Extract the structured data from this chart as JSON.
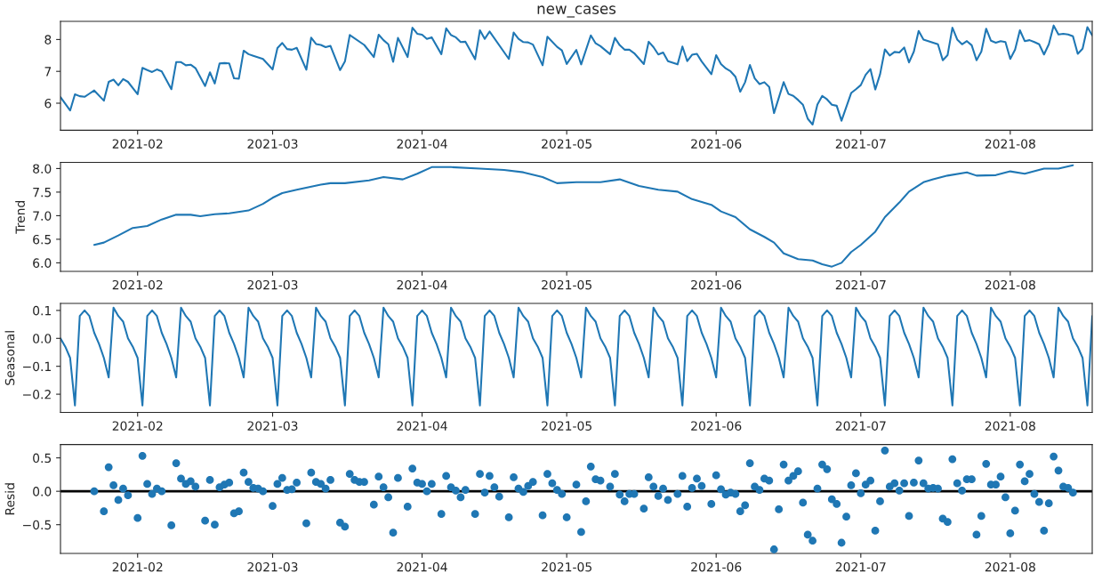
{
  "chart_data": [
    {
      "type": "line",
      "title": "new_cases",
      "xlim": [
        "2021-01-16",
        "2021-08-18"
      ],
      "xticks": [
        {
          "value": "2021-02-01",
          "label": "2021-02"
        },
        {
          "value": "2021-03-01",
          "label": "2021-03"
        },
        {
          "value": "2021-04-01",
          "label": "2021-04"
        },
        {
          "value": "2021-05-01",
          "label": "2021-05"
        },
        {
          "value": "2021-06-01",
          "label": "2021-06"
        },
        {
          "value": "2021-07-01",
          "label": "2021-07"
        },
        {
          "value": "2021-08-01",
          "label": "2021-08"
        }
      ],
      "ylim": [
        5.15,
        8.57
      ],
      "yticks": [
        6,
        7,
        8
      ],
      "series": [
        {
          "color": "#1f77b4",
          "x": [
            "2021-01-16",
            "2021-01-18",
            "2021-01-19",
            "2021-01-20",
            "2021-01-21",
            "2021-01-22",
            "2021-01-23",
            "2021-01-25",
            "2021-01-26",
            "2021-01-27",
            "2021-01-28",
            "2021-01-29",
            "2021-01-30",
            "2021-02-01",
            "2021-02-02",
            "2021-02-03",
            "2021-02-04",
            "2021-02-05",
            "2021-02-06",
            "2021-02-08",
            "2021-02-09",
            "2021-02-10",
            "2021-02-11",
            "2021-02-12",
            "2021-02-13",
            "2021-02-15",
            "2021-02-16",
            "2021-02-17",
            "2021-02-18",
            "2021-02-19",
            "2021-02-20",
            "2021-02-21",
            "2021-02-22",
            "2021-02-23",
            "2021-02-24",
            "2021-02-25",
            "2021-02-27",
            "2021-03-01",
            "2021-03-02",
            "2021-03-03",
            "2021-03-04",
            "2021-03-05",
            "2021-03-06",
            "2021-03-08",
            "2021-03-09",
            "2021-03-10",
            "2021-03-11",
            "2021-03-12",
            "2021-03-13",
            "2021-03-15",
            "2021-03-16",
            "2021-03-17",
            "2021-03-20",
            "2021-03-22",
            "2021-03-23",
            "2021-03-24",
            "2021-03-25",
            "2021-03-26",
            "2021-03-27",
            "2021-03-29",
            "2021-03-30",
            "2021-03-31",
            "2021-04-01",
            "2021-04-02",
            "2021-04-03",
            "2021-04-05",
            "2021-04-06",
            "2021-04-07",
            "2021-04-08",
            "2021-04-09",
            "2021-04-10",
            "2021-04-12",
            "2021-04-13",
            "2021-04-14",
            "2021-04-15",
            "2021-04-19",
            "2021-04-20",
            "2021-04-21",
            "2021-04-22",
            "2021-04-23",
            "2021-04-24",
            "2021-04-26",
            "2021-04-27",
            "2021-04-29",
            "2021-04-30",
            "2021-05-01",
            "2021-05-03",
            "2021-05-04",
            "2021-05-06",
            "2021-05-07",
            "2021-05-08",
            "2021-05-10",
            "2021-05-11",
            "2021-05-12",
            "2021-05-13",
            "2021-05-14",
            "2021-05-15",
            "2021-05-17",
            "2021-05-18",
            "2021-05-19",
            "2021-05-20",
            "2021-05-21",
            "2021-05-22",
            "2021-05-24",
            "2021-05-25",
            "2021-05-26",
            "2021-05-27",
            "2021-05-28",
            "2021-05-29",
            "2021-05-31",
            "2021-06-01",
            "2021-06-02",
            "2021-06-03",
            "2021-06-04",
            "2021-06-05",
            "2021-06-06",
            "2021-06-07",
            "2021-06-08",
            "2021-06-09",
            "2021-06-10",
            "2021-06-11",
            "2021-06-12",
            "2021-06-13",
            "2021-06-15",
            "2021-06-16",
            "2021-06-17",
            "2021-06-18",
            "2021-06-19",
            "2021-06-20",
            "2021-06-21",
            "2021-06-22",
            "2021-06-23",
            "2021-06-24",
            "2021-06-25",
            "2021-06-26",
            "2021-06-27",
            "2021-06-29",
            "2021-06-30",
            "2021-07-01",
            "2021-07-02",
            "2021-07-03",
            "2021-07-04",
            "2021-07-05",
            "2021-07-06",
            "2021-07-07",
            "2021-07-08",
            "2021-07-09",
            "2021-07-10",
            "2021-07-11",
            "2021-07-12",
            "2021-07-13",
            "2021-07-14",
            "2021-07-17",
            "2021-07-18",
            "2021-07-19",
            "2021-07-20",
            "2021-07-21",
            "2021-07-22",
            "2021-07-23",
            "2021-07-24",
            "2021-07-25",
            "2021-07-26",
            "2021-07-27",
            "2021-07-28",
            "2021-07-29",
            "2021-07-30",
            "2021-07-31",
            "2021-08-01",
            "2021-08-02",
            "2021-08-03",
            "2021-08-04",
            "2021-08-05",
            "2021-08-06",
            "2021-08-07",
            "2021-08-08",
            "2021-08-09",
            "2021-08-10",
            "2021-08-11",
            "2021-08-12",
            "2021-08-13",
            "2021-08-14",
            "2021-08-15",
            "2021-08-16",
            "2021-08-17",
            "2021-08-18"
          ],
          "values": [
            6.19,
            5.77,
            6.28,
            6.22,
            6.2,
            6.3,
            6.4,
            6.08,
            6.67,
            6.74,
            6.56,
            6.76,
            6.67,
            6.28,
            7.11,
            7.04,
            6.98,
            7.06,
            7.0,
            6.44,
            7.29,
            7.29,
            7.19,
            7.21,
            7.1,
            6.54,
            6.97,
            6.62,
            7.25,
            7.26,
            7.25,
            6.78,
            6.77,
            7.65,
            7.54,
            7.49,
            7.39,
            7.06,
            7.73,
            7.89,
            7.7,
            7.68,
            7.74,
            7.05,
            8.06,
            7.86,
            7.83,
            7.76,
            7.8,
            7.04,
            7.31,
            8.14,
            7.83,
            7.45,
            8.15,
            7.98,
            7.85,
            7.3,
            8.05,
            7.45,
            8.37,
            8.18,
            8.15,
            8.02,
            8.07,
            7.54,
            8.35,
            8.14,
            8.07,
            7.92,
            7.93,
            7.38,
            8.29,
            8.02,
            8.25,
            7.39,
            8.22,
            8.02,
            7.92,
            7.91,
            7.84,
            7.19,
            8.09,
            7.77,
            7.66,
            7.23,
            7.67,
            7.22,
            8.13,
            7.88,
            7.79,
            7.54,
            8.05,
            7.82,
            7.68,
            7.68,
            7.57,
            7.23,
            7.93,
            7.76,
            7.53,
            7.59,
            7.32,
            7.22,
            7.78,
            7.32,
            7.52,
            7.55,
            7.31,
            6.91,
            7.51,
            7.23,
            7.09,
            7.0,
            6.83,
            6.36,
            6.66,
            7.2,
            6.78,
            6.6,
            6.66,
            6.51,
            5.69,
            6.66,
            6.29,
            6.23,
            6.1,
            5.95,
            5.51,
            5.33,
            5.96,
            6.23,
            6.12,
            5.95,
            5.92,
            5.45,
            6.32,
            6.44,
            6.57,
            6.89,
            7.07,
            6.43,
            6.91,
            7.69,
            7.5,
            7.61,
            7.59,
            7.75,
            7.28,
            7.62,
            8.27,
            8.0,
            7.85,
            7.35,
            7.51,
            8.37,
            8.0,
            7.85,
            7.95,
            7.82,
            7.35,
            7.62,
            8.34,
            7.96,
            7.9,
            7.95,
            7.92,
            7.39,
            7.68,
            8.29,
            7.95,
            7.98,
            7.92,
            7.85,
            7.53,
            7.85,
            8.44,
            8.16,
            8.18,
            8.16,
            8.1,
            7.55,
            7.71,
            8.39,
            8.13
          ]
        }
      ]
    },
    {
      "type": "line",
      "ylabel": "Trend",
      "xlim": [
        "2021-01-16",
        "2021-08-18"
      ],
      "xticks": [
        {
          "value": "2021-02-01",
          "label": "2021-02"
        },
        {
          "value": "2021-03-01",
          "label": "2021-03"
        },
        {
          "value": "2021-04-01",
          "label": "2021-04"
        },
        {
          "value": "2021-05-01",
          "label": "2021-05"
        },
        {
          "value": "2021-06-01",
          "label": "2021-06"
        },
        {
          "value": "2021-07-01",
          "label": "2021-07"
        },
        {
          "value": "2021-08-01",
          "label": "2021-08"
        }
      ],
      "ylim": [
        5.82,
        8.13
      ],
      "yticks": [
        {
          "value": 6,
          "label": "6.0"
        },
        6.5,
        {
          "value": 7,
          "label": "7.0"
        },
        7.5,
        {
          "value": 8,
          "label": "8.0"
        }
      ],
      "series": [
        {
          "color": "#1f77b4",
          "x": [
            "2021-01-23",
            "2021-01-25",
            "2021-01-28",
            "2021-01-31",
            "2021-02-03",
            "2021-02-06",
            "2021-02-09",
            "2021-02-12",
            "2021-02-14",
            "2021-02-17",
            "2021-02-20",
            "2021-02-24",
            "2021-02-27",
            "2021-03-01",
            "2021-03-03",
            "2021-03-06",
            "2021-03-11",
            "2021-03-13",
            "2021-03-16",
            "2021-03-21",
            "2021-03-24",
            "2021-03-28",
            "2021-03-31",
            "2021-04-03",
            "2021-04-07",
            "2021-04-13",
            "2021-04-18",
            "2021-04-22",
            "2021-04-26",
            "2021-04-29",
            "2021-05-03",
            "2021-05-08",
            "2021-05-12",
            "2021-05-16",
            "2021-05-20",
            "2021-05-24",
            "2021-05-27",
            "2021-05-31",
            "2021-06-02",
            "2021-06-05",
            "2021-06-08",
            "2021-06-11",
            "2021-06-13",
            "2021-06-15",
            "2021-06-18",
            "2021-06-21",
            "2021-06-23",
            "2021-06-25",
            "2021-06-27",
            "2021-06-29",
            "2021-07-01",
            "2021-07-04",
            "2021-07-06",
            "2021-07-09",
            "2021-07-11",
            "2021-07-14",
            "2021-07-16",
            "2021-07-19",
            "2021-07-23",
            "2021-07-25",
            "2021-07-29",
            "2021-08-01",
            "2021-08-04",
            "2021-08-08",
            "2021-08-11",
            "2021-08-14"
          ],
          "values": [
            6.38,
            6.43,
            6.58,
            6.74,
            6.78,
            6.92,
            7.02,
            7.02,
            6.99,
            7.03,
            7.05,
            7.11,
            7.25,
            7.38,
            7.48,
            7.55,
            7.66,
            7.69,
            7.69,
            7.75,
            7.82,
            7.77,
            7.89,
            8.03,
            8.03,
            8.0,
            7.97,
            7.92,
            7.82,
            7.69,
            7.71,
            7.71,
            7.77,
            7.63,
            7.55,
            7.51,
            7.35,
            7.23,
            7.09,
            6.97,
            6.71,
            6.55,
            6.43,
            6.2,
            6.08,
            6.05,
            5.97,
            5.92,
            6.0,
            6.23,
            6.38,
            6.66,
            6.97,
            7.28,
            7.51,
            7.71,
            7.77,
            7.85,
            7.92,
            7.85,
            7.86,
            7.94,
            7.89,
            8.0,
            8.0,
            8.07
          ]
        }
      ]
    },
    {
      "type": "line",
      "ylabel": "Seasonal",
      "xlim": [
        "2021-01-16",
        "2021-08-18"
      ],
      "xticks": [
        {
          "value": "2021-02-01",
          "label": "2021-02"
        },
        {
          "value": "2021-03-01",
          "label": "2021-03"
        },
        {
          "value": "2021-04-01",
          "label": "2021-04"
        },
        {
          "value": "2021-05-01",
          "label": "2021-05"
        },
        {
          "value": "2021-06-01",
          "label": "2021-06"
        },
        {
          "value": "2021-07-01",
          "label": "2021-07"
        },
        {
          "value": "2021-08-01",
          "label": "2021-08"
        }
      ],
      "ylim": [
        -0.265,
        0.125
      ],
      "yticks": [
        {
          "value": -0.2,
          "label": "−0.2"
        },
        {
          "value": -0.1,
          "label": "−0.1"
        },
        {
          "value": 0,
          "label": "0.0"
        },
        0.1
      ],
      "series": [
        {
          "color": "#1f77b4",
          "x": [
            "2021-01-16",
            "2021-01-17",
            "2021-01-18",
            "2021-01-19",
            "2021-01-20",
            "2021-01-21",
            "2021-01-22",
            "2021-01-23",
            "2021-01-24",
            "2021-01-25",
            "2021-01-26",
            "2021-01-27",
            "2021-01-28",
            "2021-01-29",
            "2021-01-30",
            "2021-01-31",
            "2021-02-01",
            "2021-02-02",
            "2021-02-03",
            "2021-02-04",
            "2021-02-05",
            "2021-02-06",
            "2021-02-07",
            "2021-02-08",
            "2021-02-09",
            "2021-02-10",
            "2021-02-11",
            "2021-02-12",
            "2021-02-13",
            "2021-02-14",
            "2021-02-15",
            "2021-02-16",
            "2021-02-17",
            "2021-02-18",
            "2021-02-19",
            "2021-02-20",
            "2021-02-21",
            "2021-02-22",
            "2021-02-23",
            "2021-02-24",
            "2021-02-25",
            "2021-02-26",
            "2021-02-27",
            "2021-02-28",
            "2021-03-01",
            "2021-03-02",
            "2021-03-03",
            "2021-03-04",
            "2021-03-05",
            "2021-03-06",
            "2021-03-07",
            "2021-03-08",
            "2021-03-09",
            "2021-03-10",
            "2021-03-11",
            "2021-03-12",
            "2021-03-13",
            "2021-03-14",
            "2021-03-15",
            "2021-03-16",
            "2021-03-17",
            "2021-03-18",
            "2021-03-19",
            "2021-03-20",
            "2021-03-21",
            "2021-03-22",
            "2021-03-23",
            "2021-03-24",
            "2021-03-25",
            "2021-03-26",
            "2021-03-27",
            "2021-03-28",
            "2021-03-29",
            "2021-03-30",
            "2021-03-31",
            "2021-04-01",
            "2021-04-02",
            "2021-04-03",
            "2021-04-04",
            "2021-04-05",
            "2021-04-06",
            "2021-04-07",
            "2021-04-08",
            "2021-04-09",
            "2021-04-10",
            "2021-04-11",
            "2021-04-12",
            "2021-04-13",
            "2021-04-14",
            "2021-04-15",
            "2021-04-16",
            "2021-04-17",
            "2021-04-18",
            "2021-04-19",
            "2021-04-20",
            "2021-04-21",
            "2021-04-22",
            "2021-04-23",
            "2021-04-24",
            "2021-04-25",
            "2021-04-26",
            "2021-04-27",
            "2021-04-28",
            "2021-04-29",
            "2021-04-30",
            "2021-05-01",
            "2021-05-02",
            "2021-05-03",
            "2021-05-04",
            "2021-05-05",
            "2021-05-06",
            "2021-05-07",
            "2021-05-08",
            "2021-05-09",
            "2021-05-10",
            "2021-05-11",
            "2021-05-12",
            "2021-05-13",
            "2021-05-14",
            "2021-05-15",
            "2021-05-16",
            "2021-05-17",
            "2021-05-18",
            "2021-05-19",
            "2021-05-20",
            "2021-05-21",
            "2021-05-22",
            "2021-05-23",
            "2021-05-24",
            "2021-05-25",
            "2021-05-26",
            "2021-05-27",
            "2021-05-28",
            "2021-05-29",
            "2021-05-30",
            "2021-05-31",
            "2021-06-01",
            "2021-06-02",
            "2021-06-03",
            "2021-06-04",
            "2021-06-05",
            "2021-06-06",
            "2021-06-07",
            "2021-06-08",
            "2021-06-09",
            "2021-06-10",
            "2021-06-11",
            "2021-06-12",
            "2021-06-13",
            "2021-06-14",
            "2021-06-15",
            "2021-06-16",
            "2021-06-17",
            "2021-06-18",
            "2021-06-19",
            "2021-06-20",
            "2021-06-21",
            "2021-06-22",
            "2021-06-23",
            "2021-06-24",
            "2021-06-25",
            "2021-06-26",
            "2021-06-27",
            "2021-06-28",
            "2021-06-29",
            "2021-06-30",
            "2021-07-01",
            "2021-07-02",
            "2021-07-03",
            "2021-07-04",
            "2021-07-05",
            "2021-07-06",
            "2021-07-07",
            "2021-07-08",
            "2021-07-09",
            "2021-07-10",
            "2021-07-11",
            "2021-07-12",
            "2021-07-13",
            "2021-07-14",
            "2021-07-15",
            "2021-07-16",
            "2021-07-17",
            "2021-07-18",
            "2021-07-19",
            "2021-07-20",
            "2021-07-21",
            "2021-07-22",
            "2021-07-23",
            "2021-07-24",
            "2021-07-25",
            "2021-07-26",
            "2021-07-27",
            "2021-07-28",
            "2021-07-29",
            "2021-07-30",
            "2021-07-31",
            "2021-08-01",
            "2021-08-02",
            "2021-08-03",
            "2021-08-04",
            "2021-08-05",
            "2021-08-06",
            "2021-08-07",
            "2021-08-08",
            "2021-08-09",
            "2021-08-10",
            "2021-08-11",
            "2021-08-12",
            "2021-08-13",
            "2021-08-14",
            "2021-08-15",
            "2021-08-16",
            "2021-08-17",
            "2021-08-18"
          ],
          "values": [
            0.0,
            -0.03,
            -0.07,
            -0.24,
            0.08,
            0.1,
            0.08,
            0.02,
            -0.02,
            -0.07,
            -0.14,
            0.11,
            0.08,
            0.06,
            0.0,
            -0.03,
            -0.07,
            -0.24,
            0.08,
            0.1,
            0.08,
            0.02,
            -0.02,
            -0.07,
            -0.14,
            0.11,
            0.08,
            0.06,
            0.0,
            -0.03,
            -0.07,
            -0.24,
            0.08,
            0.1,
            0.08,
            0.02,
            -0.02,
            -0.07,
            -0.14,
            0.11,
            0.08,
            0.06,
            0.0,
            -0.03,
            -0.07,
            -0.24,
            0.08,
            0.1,
            0.08,
            0.02,
            -0.02,
            -0.07,
            -0.14,
            0.11,
            0.08,
            0.06,
            0.0,
            -0.03,
            -0.07,
            -0.24,
            0.08,
            0.1,
            0.08,
            0.02,
            -0.02,
            -0.07,
            -0.14,
            0.11,
            0.08,
            0.06,
            0.0,
            -0.03,
            -0.07,
            -0.24,
            0.08,
            0.1,
            0.08,
            0.02,
            -0.02,
            -0.07,
            -0.14,
            0.11,
            0.08,
            0.06,
            0.0,
            -0.03,
            -0.07,
            -0.24,
            0.08,
            0.1,
            0.08,
            0.02,
            -0.02,
            -0.07,
            -0.14,
            0.11,
            0.08,
            0.06,
            0.0,
            -0.03,
            -0.07,
            -0.24,
            0.08,
            0.1,
            0.08,
            0.02,
            -0.02,
            -0.07,
            -0.14,
            0.11,
            0.08,
            0.06,
            0.0,
            -0.03,
            -0.07,
            -0.24,
            0.08,
            0.1,
            0.08,
            0.02,
            -0.02,
            -0.07,
            -0.14,
            0.11,
            0.08,
            0.06,
            0.0,
            -0.03,
            -0.07,
            -0.24,
            0.08,
            0.1,
            0.08,
            0.02,
            -0.02,
            -0.07,
            -0.14,
            0.11,
            0.08,
            0.06,
            0.0,
            -0.03,
            -0.07,
            -0.24,
            0.08,
            0.1,
            0.08,
            0.02,
            -0.02,
            -0.07,
            -0.14,
            0.11,
            0.08,
            0.06,
            0.0,
            -0.03,
            -0.07,
            -0.24,
            0.08,
            0.1,
            0.08,
            0.02,
            -0.02,
            -0.07,
            -0.14,
            0.11,
            0.08,
            0.06,
            0.0,
            -0.03,
            -0.07,
            -0.24,
            0.08,
            0.1,
            0.08,
            0.02,
            -0.02,
            -0.07,
            -0.14,
            0.11,
            0.08,
            0.06,
            0.0,
            -0.03,
            -0.07,
            -0.24,
            0.08,
            0.1,
            0.08,
            0.02,
            -0.02,
            -0.07,
            -0.14,
            0.11,
            0.08,
            0.06,
            0.0,
            -0.03,
            -0.07,
            -0.24,
            0.08,
            0.1,
            0.08,
            0.02,
            -0.02,
            -0.07,
            -0.14,
            0.11,
            0.08,
            0.06,
            0.0,
            -0.03,
            -0.07,
            -0.24,
            0.08
          ]
        }
      ]
    },
    {
      "type": "scatter",
      "ylabel": "Resid",
      "marker": "circle",
      "xlim": [
        "2021-01-16",
        "2021-08-18"
      ],
      "xticks": [
        {
          "value": "2021-02-01",
          "label": "2021-02"
        },
        {
          "value": "2021-03-01",
          "label": "2021-03"
        },
        {
          "value": "2021-04-01",
          "label": "2021-04"
        },
        {
          "value": "2021-05-01",
          "label": "2021-05"
        },
        {
          "value": "2021-06-01",
          "label": "2021-06"
        },
        {
          "value": "2021-07-01",
          "label": "2021-07"
        },
        {
          "value": "2021-08-01",
          "label": "2021-08"
        }
      ],
      "ylim": [
        -0.93,
        0.7
      ],
      "yticks": [
        {
          "value": -0.5,
          "label": "−0.5"
        },
        {
          "value": 0,
          "label": "0.0"
        },
        0.5
      ],
      "ref_lines": [
        {
          "axis": "y",
          "value": 0,
          "color": "#000000"
        }
      ],
      "series": [
        {
          "color": "#1f77b4",
          "x": [
            "2021-01-23",
            "2021-01-25",
            "2021-01-26",
            "2021-01-27",
            "2021-01-28",
            "2021-01-29",
            "2021-01-30",
            "2021-02-01",
            "2021-02-02",
            "2021-02-03",
            "2021-02-04",
            "2021-02-05",
            "2021-02-06",
            "2021-02-08",
            "2021-02-09",
            "2021-02-10",
            "2021-02-11",
            "2021-02-12",
            "2021-02-13",
            "2021-02-15",
            "2021-02-16",
            "2021-02-17",
            "2021-02-18",
            "2021-02-19",
            "2021-02-20",
            "2021-02-21",
            "2021-02-22",
            "2021-02-23",
            "2021-02-24",
            "2021-02-25",
            "2021-02-26",
            "2021-02-27",
            "2021-03-01",
            "2021-03-02",
            "2021-03-03",
            "2021-03-04",
            "2021-03-05",
            "2021-03-06",
            "2021-03-08",
            "2021-03-09",
            "2021-03-10",
            "2021-03-11",
            "2021-03-12",
            "2021-03-13",
            "2021-03-15",
            "2021-03-16",
            "2021-03-17",
            "2021-03-18",
            "2021-03-19",
            "2021-03-20",
            "2021-03-22",
            "2021-03-23",
            "2021-03-24",
            "2021-03-25",
            "2021-03-26",
            "2021-03-27",
            "2021-03-29",
            "2021-03-30",
            "2021-03-31",
            "2021-04-01",
            "2021-04-02",
            "2021-04-03",
            "2021-04-05",
            "2021-04-06",
            "2021-04-07",
            "2021-04-08",
            "2021-04-09",
            "2021-04-10",
            "2021-04-12",
            "2021-04-13",
            "2021-04-14",
            "2021-04-15",
            "2021-04-16",
            "2021-04-17",
            "2021-04-19",
            "2021-04-20",
            "2021-04-21",
            "2021-04-22",
            "2021-04-23",
            "2021-04-24",
            "2021-04-26",
            "2021-04-27",
            "2021-04-28",
            "2021-04-29",
            "2021-04-30",
            "2021-05-01",
            "2021-05-03",
            "2021-05-04",
            "2021-05-05",
            "2021-05-06",
            "2021-05-07",
            "2021-05-08",
            "2021-05-10",
            "2021-05-11",
            "2021-05-12",
            "2021-05-13",
            "2021-05-14",
            "2021-05-15",
            "2021-05-17",
            "2021-05-18",
            "2021-05-19",
            "2021-05-20",
            "2021-05-21",
            "2021-05-22",
            "2021-05-24",
            "2021-05-25",
            "2021-05-26",
            "2021-05-27",
            "2021-05-28",
            "2021-05-29",
            "2021-05-31",
            "2021-06-01",
            "2021-06-02",
            "2021-06-03",
            "2021-06-04",
            "2021-06-05",
            "2021-06-06",
            "2021-06-07",
            "2021-06-08",
            "2021-06-09",
            "2021-06-10",
            "2021-06-11",
            "2021-06-12",
            "2021-06-13",
            "2021-06-14",
            "2021-06-15",
            "2021-06-16",
            "2021-06-17",
            "2021-06-18",
            "2021-06-19",
            "2021-06-20",
            "2021-06-21",
            "2021-06-22",
            "2021-06-23",
            "2021-06-24",
            "2021-06-25",
            "2021-06-26",
            "2021-06-27",
            "2021-06-28",
            "2021-06-29",
            "2021-06-30",
            "2021-07-01",
            "2021-07-02",
            "2021-07-03",
            "2021-07-04",
            "2021-07-05",
            "2021-07-06",
            "2021-07-07",
            "2021-07-08",
            "2021-07-09",
            "2021-07-10",
            "2021-07-11",
            "2021-07-12",
            "2021-07-13",
            "2021-07-14",
            "2021-07-15",
            "2021-07-16",
            "2021-07-17",
            "2021-07-18",
            "2021-07-19",
            "2021-07-20",
            "2021-07-21",
            "2021-07-22",
            "2021-07-23",
            "2021-07-24",
            "2021-07-25",
            "2021-07-26",
            "2021-07-27",
            "2021-07-28",
            "2021-07-29",
            "2021-07-30",
            "2021-07-31",
            "2021-08-01",
            "2021-08-02",
            "2021-08-03",
            "2021-08-04",
            "2021-08-05",
            "2021-08-06",
            "2021-08-07",
            "2021-08-08",
            "2021-08-09",
            "2021-08-10",
            "2021-08-11",
            "2021-08-12",
            "2021-08-13",
            "2021-08-14"
          ],
          "values": [
            0.0,
            -0.3,
            0.36,
            0.09,
            -0.13,
            0.04,
            -0.06,
            -0.4,
            0.53,
            0.11,
            -0.04,
            0.04,
            0.0,
            -0.51,
            0.42,
            0.19,
            0.11,
            0.15,
            0.07,
            -0.44,
            0.17,
            -0.5,
            0.06,
            0.1,
            0.13,
            -0.33,
            -0.3,
            0.28,
            0.14,
            0.05,
            0.04,
            0.0,
            -0.22,
            0.11,
            0.2,
            0.02,
            0.03,
            0.13,
            -0.48,
            0.28,
            0.14,
            0.11,
            0.04,
            0.17,
            -0.47,
            -0.53,
            0.26,
            0.17,
            0.14,
            0.14,
            -0.2,
            0.22,
            0.06,
            -0.09,
            -0.62,
            0.2,
            -0.23,
            0.34,
            0.13,
            0.11,
            0.0,
            0.11,
            -0.34,
            0.23,
            0.06,
            0.01,
            -0.09,
            0.02,
            -0.34,
            0.26,
            -0.02,
            0.23,
            0.06,
            -0.08,
            -0.39,
            0.21,
            0.04,
            -0.01,
            0.08,
            0.14,
            -0.36,
            0.26,
            0.12,
            0.02,
            -0.04,
            -0.39,
            0.1,
            -0.61,
            -0.15,
            0.37,
            0.18,
            0.16,
            0.07,
            0.26,
            -0.05,
            -0.15,
            -0.04,
            -0.04,
            -0.26,
            0.21,
            0.07,
            -0.07,
            0.04,
            -0.13,
            -0.04,
            0.23,
            -0.23,
            0.05,
            0.19,
            0.08,
            -0.19,
            0.24,
            0.03,
            -0.05,
            -0.02,
            -0.04,
            -0.3,
            -0.21,
            0.42,
            0.07,
            0.02,
            0.19,
            0.16,
            -0.87,
            -0.27,
            0.4,
            0.16,
            0.23,
            0.3,
            -0.17,
            -0.65,
            -0.74,
            0.04,
            0.4,
            0.33,
            -0.12,
            -0.19,
            -0.77,
            -0.38,
            0.09,
            0.27,
            -0.03,
            0.1,
            0.16,
            -0.59,
            -0.15,
            0.61,
            0.07,
            0.12,
            0.01,
            0.12,
            -0.37,
            0.13,
            0.46,
            0.12,
            0.04,
            0.05,
            0.04,
            -0.41,
            -0.46,
            0.48,
            0.12,
            0.01,
            0.18,
            0.18,
            -0.65,
            -0.37,
            0.41,
            0.1,
            0.1,
            0.22,
            -0.09,
            -0.63,
            -0.29,
            0.4,
            0.15,
            0.26,
            -0.04,
            -0.16,
            -0.59,
            -0.18,
            0.52,
            0.31,
            0.07,
            0.05,
            -0.02
          ]
        }
      ]
    }
  ]
}
